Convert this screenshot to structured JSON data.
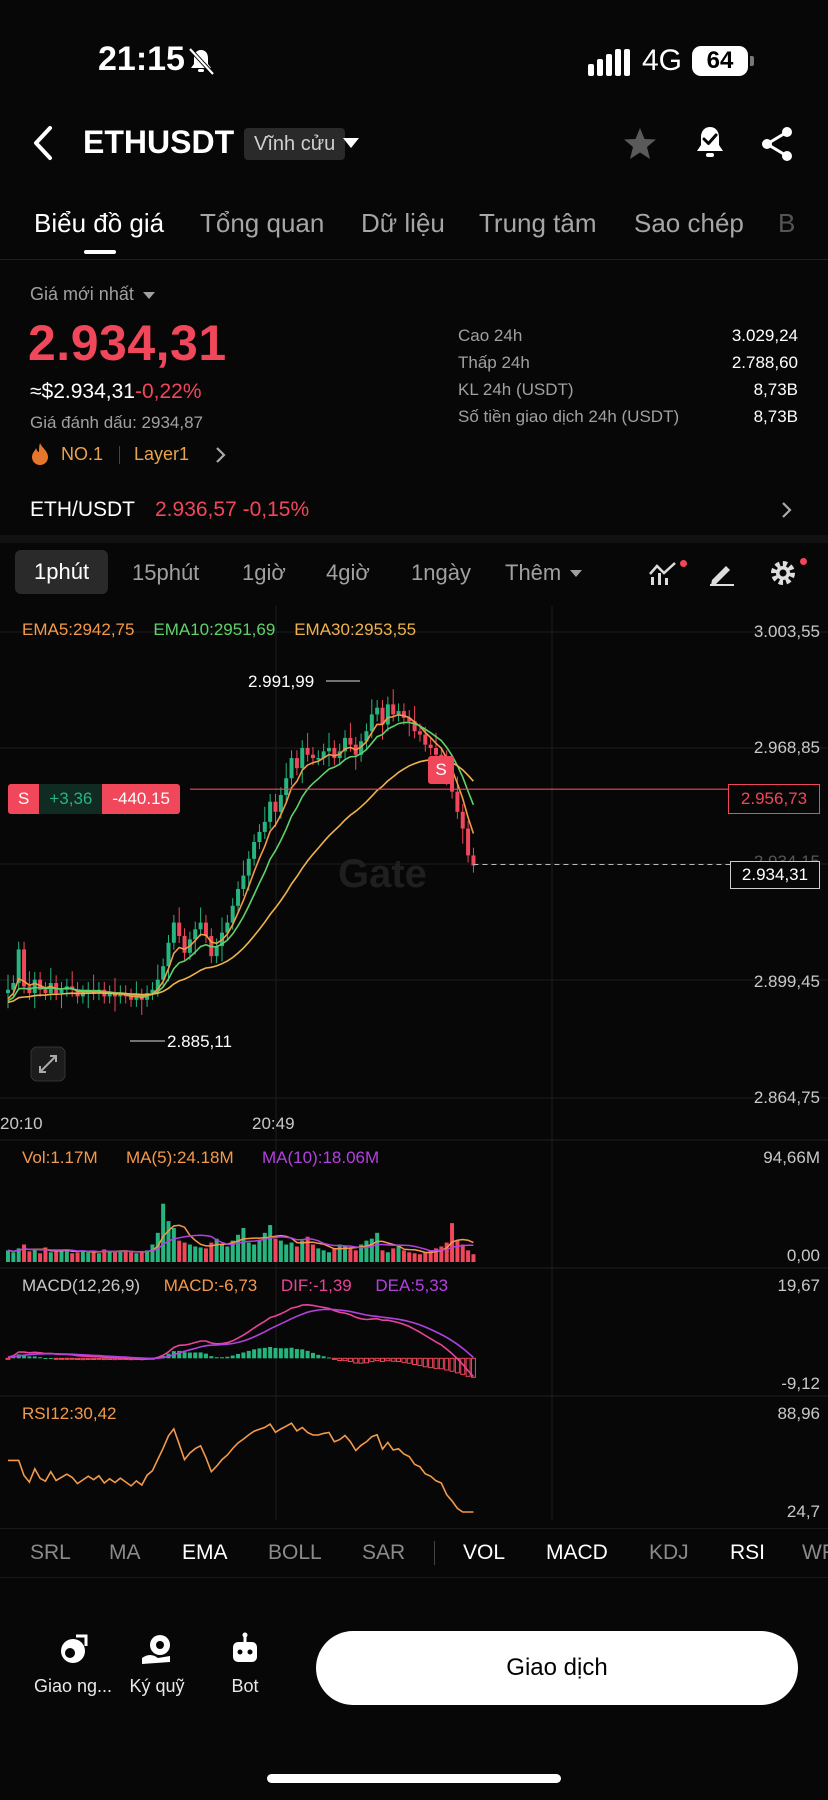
{
  "status_bar": {
    "time": "21:15",
    "network": "4G",
    "battery": "64"
  },
  "header": {
    "pair": "ETHUSDT",
    "contract_type": "Vĩnh cửu"
  },
  "tabs": [
    "Biểu đồ giá",
    "Tổng quan",
    "Dữ liệu",
    "Trung tâm",
    "Sao chép",
    "B"
  ],
  "price": {
    "label": "Giá mới nhất",
    "last": "2.934,31",
    "usd": "≈$2.934,31",
    "change": "-0,22%",
    "mark_label": "Giá đánh dấu:",
    "mark_value": "2934,87",
    "tag1": "NO.1",
    "tag2": "Layer1"
  },
  "stats": [
    {
      "k": "Cao 24h",
      "v": "3.029,24"
    },
    {
      "k": "Thấp 24h",
      "v": "2.788,60"
    },
    {
      "k": "KL 24h (USDT)",
      "v": "8,73B"
    },
    {
      "k": "Số tiền giao dịch 24h (USDT)",
      "v": "8,73B"
    }
  ],
  "spot": {
    "pair": "ETH/USDT",
    "price": "2.936,57",
    "change": "-0,15%"
  },
  "intervals": [
    "1phút",
    "15phút",
    "1giờ",
    "4giờ",
    "1ngày",
    "Thêm"
  ],
  "ema_legend": {
    "ema5": "EMA5:2942,75",
    "ema10": "EMA10:2951,69",
    "ema30": "EMA30:2953,55"
  },
  "colors": {
    "up": "#26b57f",
    "down": "#f0475a",
    "ema5": "#f39a4a",
    "ema10": "#5fd26b",
    "ema30": "#f0b24a",
    "purple": "#b340e0",
    "pink": "#e8449a"
  },
  "chart_data": {
    "type": "candlestick",
    "y_axis_ticks": [
      "3.003,55",
      "2.968,85",
      "2.934,15",
      "2.899,45",
      "2.864,75"
    ],
    "ylim": [
      2864.75,
      3003.55
    ],
    "x_axis_ticks": [
      "20:10",
      "20:49"
    ],
    "high_label": "2.991,99",
    "low_label": "2.885,11",
    "position": {
      "side": "S",
      "pnl": "+3,36",
      "size": "-440.15",
      "entry": "2.956,73",
      "entry_value": 2956.73
    },
    "current_price": "2.934,31",
    "current_value": 2934.31,
    "trade_marker": "S",
    "closes": [
      2897,
      2899,
      2909,
      2898,
      2896,
      2900,
      2897,
      2896,
      2899,
      2896,
      2897,
      2898,
      2897,
      2895,
      2896,
      2897,
      2896,
      2897,
      2895,
      2896,
      2895,
      2896,
      2895,
      2894,
      2895,
      2894,
      2896,
      2897,
      2900,
      2904,
      2911,
      2917,
      2913,
      2908,
      2912,
      2915,
      2917,
      2913,
      2907,
      2910,
      2914,
      2917,
      2922,
      2927,
      2931,
      2936,
      2941,
      2944,
      2947,
      2953,
      2950,
      2955,
      2960,
      2966,
      2963,
      2969,
      2967,
      2966,
      2966,
      2968,
      2969,
      2966,
      2968,
      2972,
      2970,
      2967,
      2971,
      2974,
      2979,
      2981,
      2976,
      2982,
      2979,
      2980,
      2978,
      2977,
      2974,
      2973,
      2970,
      2969,
      2967,
      2966,
      2960,
      2956,
      2950,
      2945,
      2937,
      2934
    ],
    "volume": {
      "legend": [
        "Vol:1.17M",
        "MA(5):24.18M",
        "MA(10):18.06M"
      ],
      "top": "94,66M",
      "bottom": "0,00",
      "max": 94.66,
      "values": [
        12,
        10,
        14,
        18,
        11,
        13,
        9,
        15,
        10,
        11,
        12,
        13,
        9,
        10,
        12,
        10,
        11,
        9,
        13,
        11,
        10,
        12,
        11,
        10,
        9,
        11,
        12,
        18,
        30,
        60,
        42,
        35,
        22,
        20,
        18,
        16,
        15,
        14,
        20,
        24,
        18,
        16,
        22,
        28,
        35,
        20,
        18,
        22,
        30,
        38,
        24,
        22,
        18,
        20,
        16,
        22,
        26,
        18,
        14,
        12,
        10,
        14,
        18,
        16,
        14,
        12,
        18,
        22,
        24,
        30,
        12,
        10,
        14,
        18,
        12,
        10,
        9,
        8,
        10,
        12,
        14,
        16,
        20,
        40,
        22,
        18,
        12,
        8
      ]
    },
    "macd": {
      "legend": [
        "MACD(12,26,9)",
        "MACD:-6,73",
        "DIF:-1,39",
        "DEA:5,33"
      ],
      "top": "19,67",
      "bottom": "-9,12",
      "range": [
        -9.12,
        19.67
      ]
    },
    "rsi": {
      "legend": "RSI12:30,42",
      "top": "88,96",
      "bottom": "24,7",
      "range": [
        24.7,
        88.96
      ]
    }
  },
  "indicator_tabs": [
    "SRL",
    "MA",
    "EMA",
    "BOLL",
    "SAR",
    "VOL",
    "MACD",
    "KDJ",
    "RSI",
    "WR"
  ],
  "bottom": {
    "copy": "Giao ng...",
    "margin": "Ký quỹ",
    "bot": "Bot",
    "trade": "Giao dịch"
  }
}
